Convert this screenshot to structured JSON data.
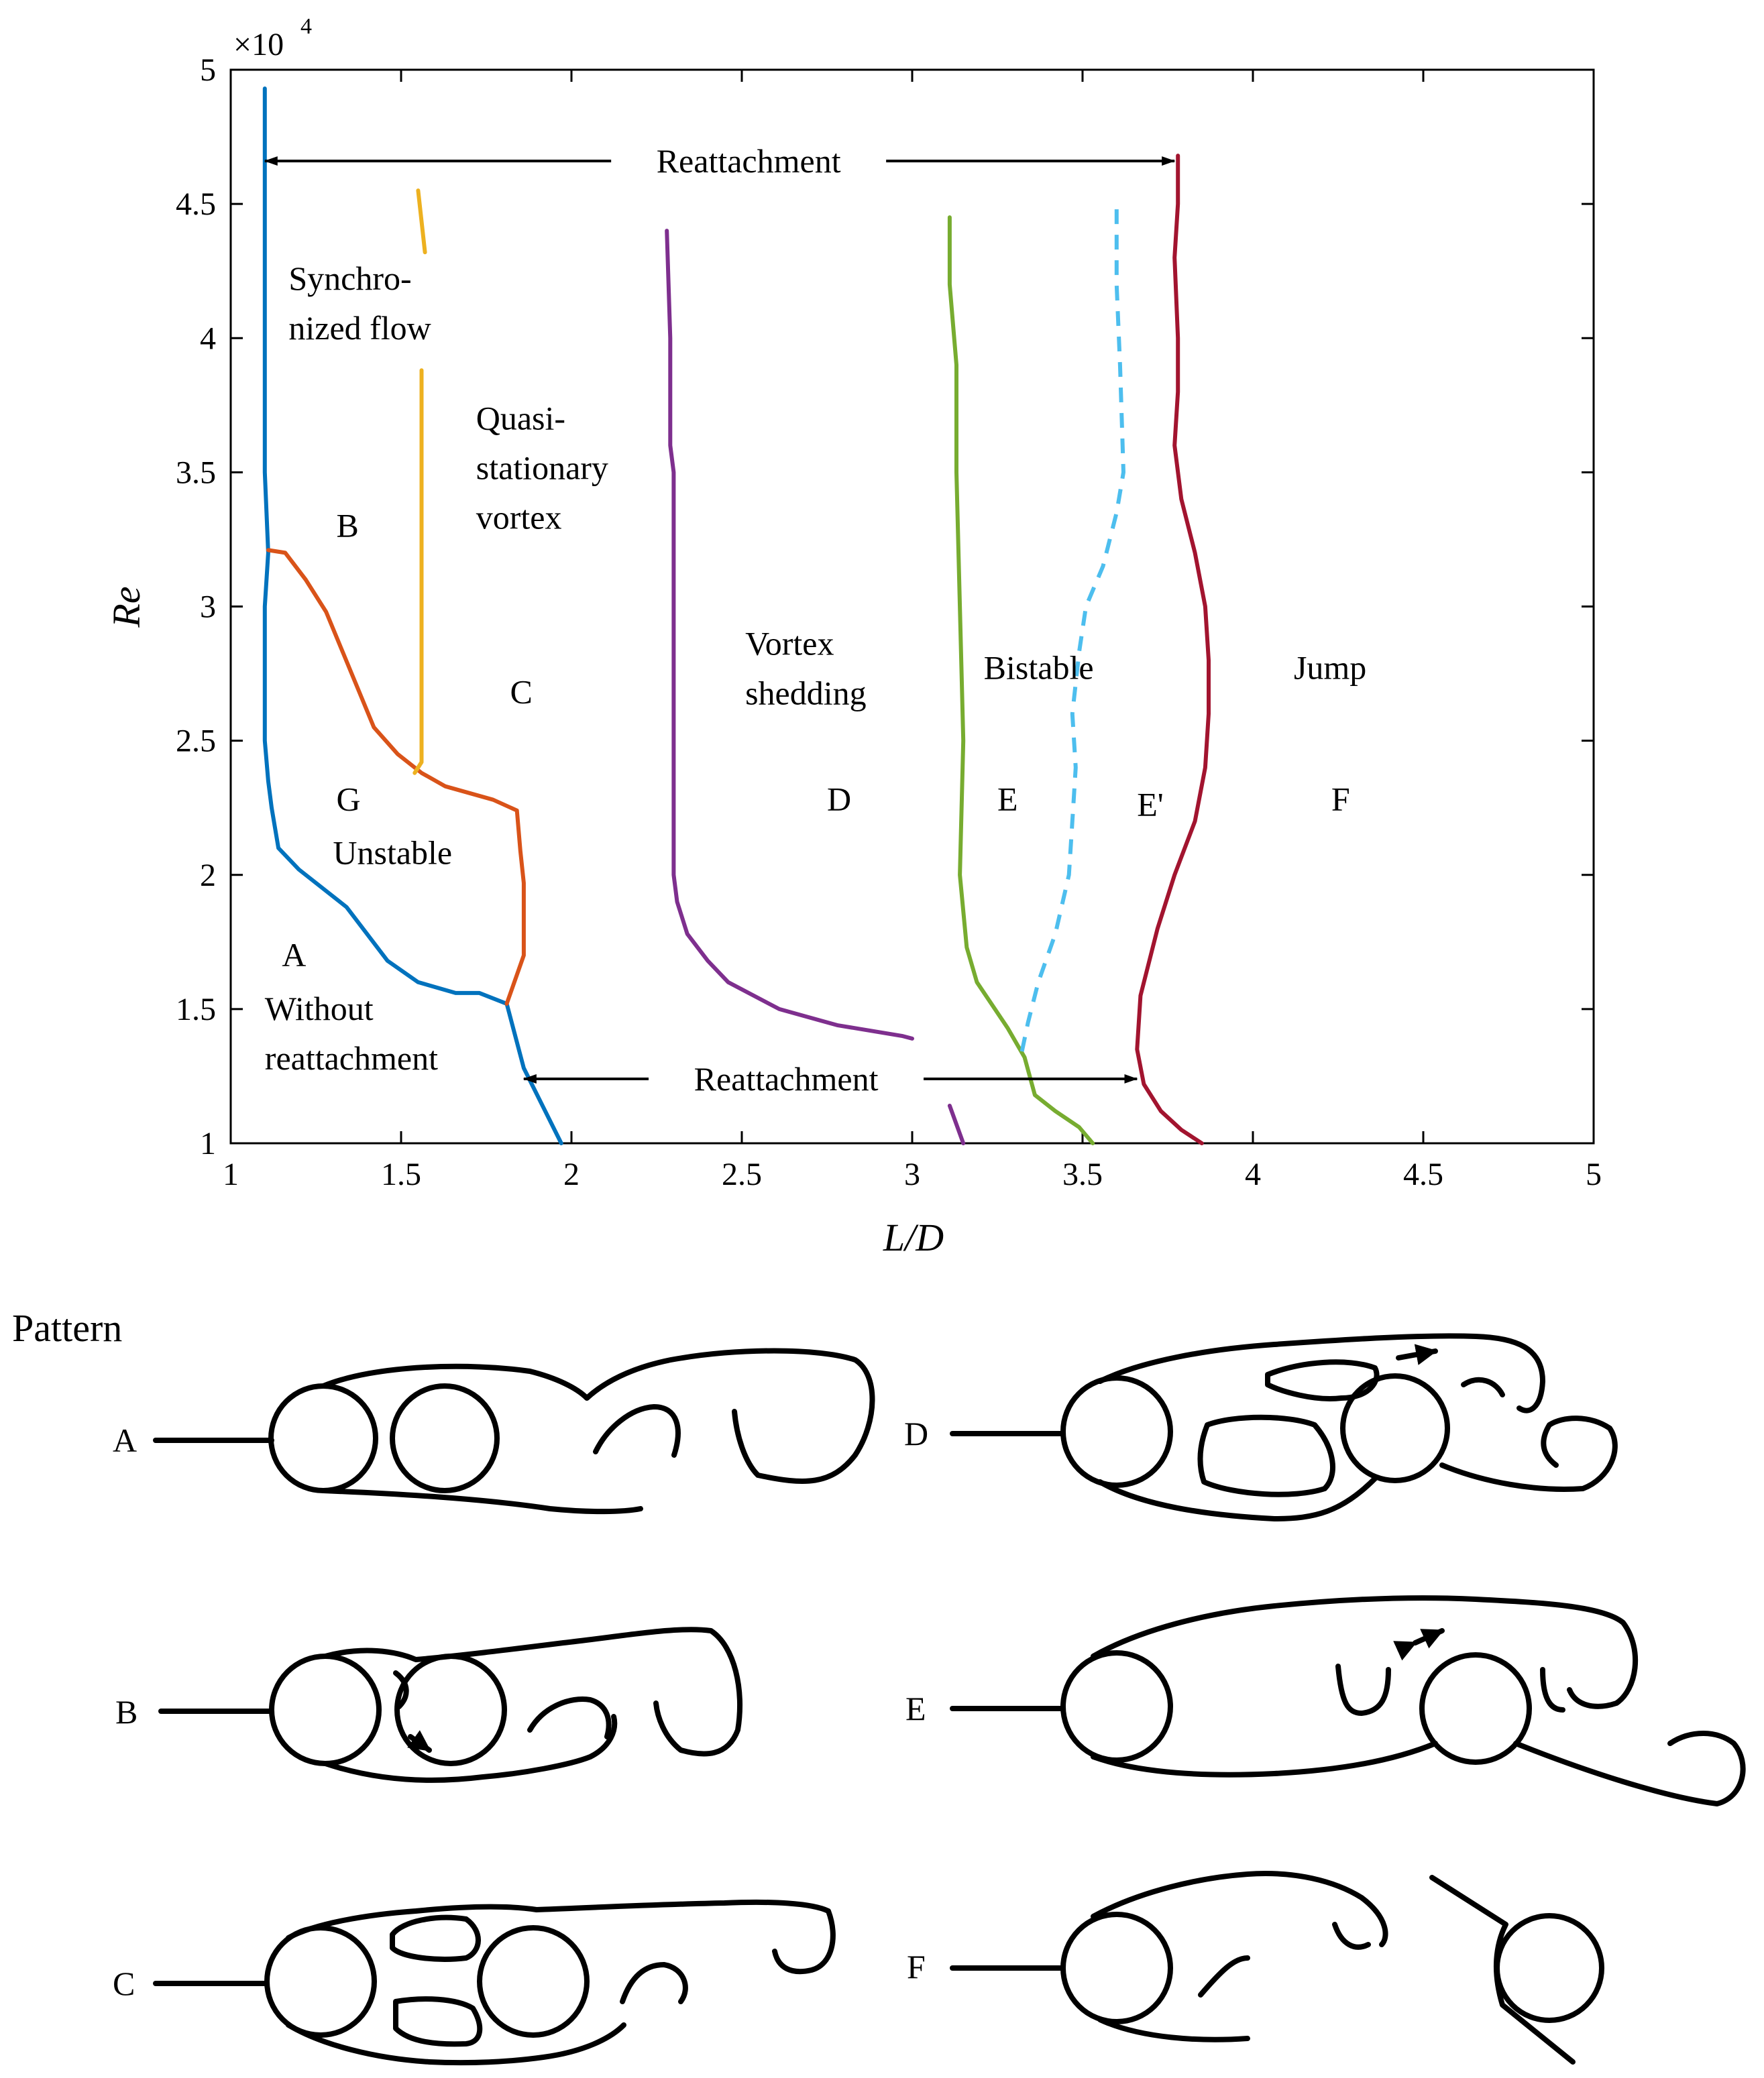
{
  "chart_data": {
    "type": "line",
    "xlabel": "L/D",
    "ylabel": "Re",
    "xlim": [
      1,
      5
    ],
    "ylim": [
      1,
      5
    ],
    "y_multiplier_label": "×10",
    "y_multiplier_exponent": "4",
    "x_ticks": [
      "1",
      "1.5",
      "2",
      "2.5",
      "3",
      "3.5",
      "4",
      "4.5",
      "5"
    ],
    "y_ticks": [
      "1",
      "1.5",
      "2",
      "2.5",
      "3",
      "3.5",
      "4",
      "4.5",
      "5"
    ],
    "series": [
      {
        "name": "boundary-blue",
        "color": "#0072BD",
        "dashed": false,
        "points": [
          [
            1.1,
            4.93
          ],
          [
            1.1,
            4.5
          ],
          [
            1.1,
            4.0
          ],
          [
            1.1,
            3.5
          ],
          [
            1.11,
            3.2
          ],
          [
            1.1,
            3.0
          ],
          [
            1.1,
            2.7
          ],
          [
            1.1,
            2.5
          ],
          [
            1.11,
            2.35
          ],
          [
            1.12,
            2.25
          ],
          [
            1.14,
            2.1
          ],
          [
            1.2,
            2.02
          ],
          [
            1.34,
            1.88
          ],
          [
            1.46,
            1.68
          ],
          [
            1.55,
            1.6
          ],
          [
            1.66,
            1.56
          ],
          [
            1.73,
            1.56
          ],
          [
            1.81,
            1.52
          ],
          [
            1.86,
            1.28
          ],
          [
            1.97,
            1.0
          ]
        ]
      },
      {
        "name": "boundary-orange",
        "color": "#D95319",
        "dashed": false,
        "points": [
          [
            1.11,
            3.21
          ],
          [
            1.16,
            3.2
          ],
          [
            1.22,
            3.1
          ],
          [
            1.28,
            2.98
          ],
          [
            1.42,
            2.55
          ],
          [
            1.49,
            2.45
          ],
          [
            1.56,
            2.38
          ],
          [
            1.63,
            2.33
          ],
          [
            1.77,
            2.28
          ],
          [
            1.84,
            2.24
          ],
          [
            1.85,
            2.09
          ],
          [
            1.86,
            1.97
          ],
          [
            1.86,
            1.7
          ],
          [
            1.81,
            1.52
          ]
        ]
      },
      {
        "name": "boundary-yellow-upper",
        "color": "#EDB120",
        "dashed": false,
        "points": [
          [
            1.55,
            4.55
          ],
          [
            1.57,
            4.32
          ]
        ]
      },
      {
        "name": "boundary-yellow-lower",
        "color": "#EDB120",
        "dashed": false,
        "points": [
          [
            1.56,
            3.88
          ],
          [
            1.56,
            3.5
          ],
          [
            1.56,
            3.0
          ],
          [
            1.56,
            2.5
          ],
          [
            1.56,
            2.42
          ],
          [
            1.54,
            2.38
          ]
        ]
      },
      {
        "name": "boundary-purple-upper",
        "color": "#7E2F8E",
        "dashed": false,
        "points": [
          [
            2.28,
            4.4
          ],
          [
            2.29,
            4.0
          ],
          [
            2.29,
            3.6
          ],
          [
            2.3,
            3.5
          ],
          [
            2.3,
            3.0
          ],
          [
            2.3,
            2.5
          ],
          [
            2.3,
            2.0
          ],
          [
            2.31,
            1.9
          ],
          [
            2.34,
            1.78
          ],
          [
            2.4,
            1.68
          ],
          [
            2.46,
            1.6
          ],
          [
            2.61,
            1.5
          ],
          [
            2.78,
            1.44
          ],
          [
            2.97,
            1.4
          ],
          [
            3.0,
            1.39
          ]
        ]
      },
      {
        "name": "boundary-purple-lower",
        "color": "#7E2F8E",
        "dashed": false,
        "points": [
          [
            3.11,
            1.14
          ],
          [
            3.15,
            1.0
          ]
        ]
      },
      {
        "name": "boundary-green",
        "color": "#77AC30",
        "dashed": false,
        "points": [
          [
            3.11,
            4.45
          ],
          [
            3.11,
            4.2
          ],
          [
            3.13,
            3.9
          ],
          [
            3.13,
            3.5
          ],
          [
            3.14,
            3.0
          ],
          [
            3.15,
            2.5
          ],
          [
            3.14,
            2.0
          ],
          [
            3.16,
            1.73
          ],
          [
            3.19,
            1.6
          ],
          [
            3.28,
            1.43
          ],
          [
            3.33,
            1.32
          ],
          [
            3.36,
            1.18
          ],
          [
            3.42,
            1.12
          ],
          [
            3.49,
            1.06
          ],
          [
            3.53,
            1.0
          ]
        ]
      },
      {
        "name": "boundary-cyan-dashed",
        "color": "#4DBEEE",
        "dashed": true,
        "points": [
          [
            3.6,
            4.48
          ],
          [
            3.6,
            4.2
          ],
          [
            3.61,
            3.9
          ],
          [
            3.62,
            3.5
          ],
          [
            3.6,
            3.35
          ],
          [
            3.56,
            3.15
          ],
          [
            3.51,
            3.0
          ],
          [
            3.49,
            2.83
          ],
          [
            3.47,
            2.6
          ],
          [
            3.48,
            2.4
          ],
          [
            3.47,
            2.2
          ],
          [
            3.46,
            2.0
          ],
          [
            3.42,
            1.78
          ],
          [
            3.37,
            1.6
          ],
          [
            3.34,
            1.45
          ],
          [
            3.32,
            1.33
          ]
        ]
      },
      {
        "name": "boundary-red",
        "color": "#A2142F",
        "dashed": false,
        "points": [
          [
            3.78,
            4.68
          ],
          [
            3.78,
            4.5
          ],
          [
            3.77,
            4.3
          ],
          [
            3.78,
            4.0
          ],
          [
            3.78,
            3.8
          ],
          [
            3.77,
            3.6
          ],
          [
            3.79,
            3.4
          ],
          [
            3.83,
            3.2
          ],
          [
            3.86,
            3.0
          ],
          [
            3.87,
            2.8
          ],
          [
            3.87,
            2.6
          ],
          [
            3.86,
            2.4
          ],
          [
            3.83,
            2.2
          ],
          [
            3.77,
            2.0
          ],
          [
            3.72,
            1.8
          ],
          [
            3.67,
            1.55
          ],
          [
            3.66,
            1.35
          ],
          [
            3.68,
            1.22
          ],
          [
            3.73,
            1.12
          ],
          [
            3.79,
            1.05
          ],
          [
            3.85,
            1.0
          ]
        ]
      }
    ],
    "annotations": [
      {
        "name": "reattachment-top",
        "text": "Reattachment",
        "arrow_from": 1.1,
        "arrow_to": 3.77,
        "y": 4.66,
        "label_x": 2.52
      },
      {
        "name": "reattachment-bottom",
        "text": "Reattachment",
        "arrow_from": 1.86,
        "arrow_to": 3.66,
        "y": 1.24,
        "label_x": 2.63
      }
    ],
    "region_labels": [
      {
        "lines": [
          "Synchro-",
          "nized flow"
        ],
        "x": 1.17,
        "y": 4.18
      },
      {
        "lines": [
          "Quasi-",
          "stationary",
          "vortex"
        ],
        "x": 1.72,
        "y": 3.66
      },
      {
        "lines": [
          "B"
        ],
        "x": 1.31,
        "y": 3.26
      },
      {
        "lines": [
          "C"
        ],
        "x": 1.82,
        "y": 2.64
      },
      {
        "lines": [
          "Vortex",
          "shedding"
        ],
        "x": 2.51,
        "y": 2.82
      },
      {
        "lines": [
          "Bistable"
        ],
        "x": 3.21,
        "y": 2.73
      },
      {
        "lines": [
          "Jump"
        ],
        "x": 4.12,
        "y": 2.73
      },
      {
        "lines": [
          "G"
        ],
        "x": 1.31,
        "y": 2.24
      },
      {
        "lines": [
          "Unstable"
        ],
        "x": 1.3,
        "y": 2.04
      },
      {
        "lines": [
          "D"
        ],
        "x": 2.75,
        "y": 2.24
      },
      {
        "lines": [
          "E"
        ],
        "x": 3.25,
        "y": 2.24
      },
      {
        "lines": [
          "E'"
        ],
        "x": 3.66,
        "y": 2.22
      },
      {
        "lines": [
          "F"
        ],
        "x": 4.23,
        "y": 2.24
      },
      {
        "lines": [
          "A"
        ],
        "x": 1.15,
        "y": 1.66
      },
      {
        "lines": [
          "Without",
          "reattachment"
        ],
        "x": 1.1,
        "y": 1.46
      }
    ]
  },
  "patterns": {
    "heading": "Pattern",
    "letters": [
      "A",
      "B",
      "C",
      "D",
      "E",
      "F"
    ]
  }
}
